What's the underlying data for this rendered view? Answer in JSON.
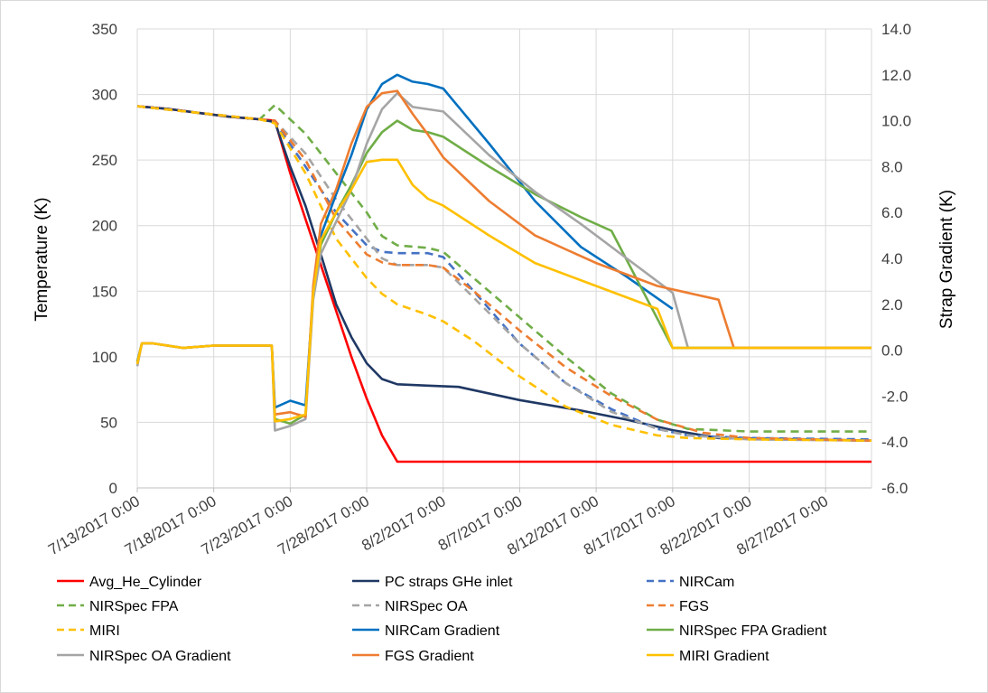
{
  "chart_data": {
    "type": "line",
    "title": "",
    "ylabel": "Temperature (K)",
    "y2label": "Strap Gradient (K)",
    "xlabel": "",
    "x_tick_labels": [
      "7/13/2017 0:00",
      "7/18/2017 0:00",
      "7/23/2017 0:00",
      "7/28/2017 0:00",
      "8/2/2017 0:00",
      "8/7/2017 0:00",
      "8/12/2017 0:00",
      "8/17/2017 0:00",
      "8/22/2017 0:00",
      "8/27/2017 0:00"
    ],
    "y_tick_labels": [
      "0",
      "50",
      "100",
      "150",
      "200",
      "250",
      "300",
      "350"
    ],
    "y2_tick_labels": [
      "-6.0",
      "-4.0",
      "-2.0",
      "0.0",
      "2.0",
      "4.0",
      "6.0",
      "8.0",
      "10.0",
      "12.0",
      "14.0"
    ],
    "xlim": [
      "2017-07-13",
      "2017-08-30"
    ],
    "ylim": [
      0,
      350
    ],
    "y2lim": [
      -6,
      14
    ],
    "grid": true,
    "legend_position": "bottom",
    "series": [
      {
        "name": "Avg_He_Cylinder",
        "axis": "left",
        "color": "#ff0000",
        "dash": "solid",
        "x": [
          "2017-07-13",
          "2017-07-15",
          "2017-07-17",
          "2017-07-19",
          "2017-07-21",
          "2017-07-22",
          "2017-07-23",
          "2017-07-24",
          "2017-07-25",
          "2017-07-26",
          "2017-07-27",
          "2017-07-28",
          "2017-07-29",
          "2017-07-30",
          "2017-07-31",
          "2017-08-05",
          "2017-08-15",
          "2017-08-25",
          "2017-08-30"
        ],
        "y": [
          291,
          289,
          286,
          283,
          281,
          280,
          240,
          205,
          170,
          135,
          100,
          68,
          40,
          20,
          20,
          20,
          20,
          20,
          20
        ]
      },
      {
        "name": "PC straps GHe inlet",
        "axis": "left",
        "color": "#1f3864",
        "dash": "solid",
        "x": [
          "2017-07-13",
          "2017-07-15",
          "2017-07-17",
          "2017-07-19",
          "2017-07-21",
          "2017-07-22",
          "2017-07-23",
          "2017-07-24",
          "2017-07-25",
          "2017-07-26",
          "2017-07-27",
          "2017-07-28",
          "2017-07-29",
          "2017-07-30",
          "2017-08-01",
          "2017-08-03",
          "2017-08-07",
          "2017-08-11",
          "2017-08-14",
          "2017-08-17",
          "2017-08-20",
          "2017-08-25",
          "2017-08-30"
        ],
        "y": [
          291,
          289,
          286,
          283,
          281,
          279,
          245,
          215,
          178,
          140,
          115,
          95,
          83,
          79,
          78,
          77,
          67,
          59,
          52,
          44,
          38,
          37,
          36
        ]
      },
      {
        "name": "NIRCam",
        "axis": "left",
        "color": "#4472c4",
        "dash": "dash",
        "x": [
          "2017-07-13",
          "2017-07-17",
          "2017-07-21",
          "2017-07-22",
          "2017-07-24",
          "2017-07-26",
          "2017-07-28",
          "2017-07-29",
          "2017-07-30",
          "2017-08-01",
          "2017-08-02",
          "2017-08-04",
          "2017-08-07",
          "2017-08-10",
          "2017-08-13",
          "2017-08-16",
          "2017-08-18",
          "2017-08-22",
          "2017-08-30"
        ],
        "y": [
          291,
          286,
          281,
          279,
          245,
          210,
          185,
          180,
          179,
          179,
          176,
          150,
          110,
          80,
          60,
          45,
          40,
          38,
          37
        ]
      },
      {
        "name": "NIRSpec FPA",
        "axis": "left",
        "color": "#70ad47",
        "dash": "dash",
        "x": [
          "2017-07-13",
          "2017-07-17",
          "2017-07-21",
          "2017-07-22",
          "2017-07-24",
          "2017-07-26",
          "2017-07-28",
          "2017-07-29",
          "2017-07-30",
          "2017-08-01",
          "2017-08-02",
          "2017-08-04",
          "2017-08-07",
          "2017-08-10",
          "2017-08-13",
          "2017-08-16",
          "2017-08-18",
          "2017-08-22",
          "2017-08-30"
        ],
        "y": [
          291,
          286,
          281,
          292,
          270,
          240,
          210,
          192,
          185,
          183,
          180,
          160,
          130,
          100,
          72,
          52,
          45,
          43,
          43
        ]
      },
      {
        "name": "NIRSpec OA",
        "axis": "left",
        "color": "#a5a5a5",
        "dash": "dash",
        "x": [
          "2017-07-13",
          "2017-07-17",
          "2017-07-21",
          "2017-07-22",
          "2017-07-24",
          "2017-07-26",
          "2017-07-28",
          "2017-07-29",
          "2017-07-30",
          "2017-08-01",
          "2017-08-02",
          "2017-08-04",
          "2017-08-07",
          "2017-08-10",
          "2017-08-13",
          "2017-08-16",
          "2017-08-18",
          "2017-08-22",
          "2017-08-30"
        ],
        "y": [
          291,
          286,
          281,
          280,
          255,
          220,
          190,
          175,
          170,
          170,
          168,
          145,
          110,
          80,
          58,
          45,
          40,
          37,
          36
        ]
      },
      {
        "name": "FGS",
        "axis": "left",
        "color": "#ed7d31",
        "dash": "dash",
        "x": [
          "2017-07-13",
          "2017-07-17",
          "2017-07-21",
          "2017-07-22",
          "2017-07-24",
          "2017-07-26",
          "2017-07-28",
          "2017-07-29",
          "2017-07-30",
          "2017-08-01",
          "2017-08-02",
          "2017-08-04",
          "2017-08-07",
          "2017-08-10",
          "2017-08-13",
          "2017-08-16",
          "2017-08-19",
          "2017-08-22",
          "2017-08-30"
        ],
        "y": [
          291,
          286,
          281,
          280,
          250,
          205,
          178,
          172,
          170,
          170,
          168,
          150,
          120,
          92,
          70,
          52,
          42,
          38,
          36
        ]
      },
      {
        "name": "MIRI",
        "axis": "left",
        "color": "#ffc000",
        "dash": "dash",
        "x": [
          "2017-07-13",
          "2017-07-17",
          "2017-07-21",
          "2017-07-22",
          "2017-07-24",
          "2017-07-26",
          "2017-07-28",
          "2017-07-29",
          "2017-07-30",
          "2017-08-01",
          "2017-08-02",
          "2017-08-04",
          "2017-08-07",
          "2017-08-10",
          "2017-08-13",
          "2017-08-16",
          "2017-08-18",
          "2017-08-22",
          "2017-08-30"
        ],
        "y": [
          291,
          286,
          281,
          278,
          240,
          190,
          160,
          148,
          140,
          132,
          127,
          112,
          85,
          62,
          48,
          40,
          38,
          37,
          36
        ]
      },
      {
        "name": "NIRCam Gradient",
        "axis": "right",
        "color": "#0070c0",
        "dash": "solid",
        "x": [
          "2017-07-13",
          "2017-07-13.3",
          "2017-07-14",
          "2017-07-16",
          "2017-07-18",
          "2017-07-20",
          "2017-07-21.8",
          "2017-07-22",
          "2017-07-23",
          "2017-07-24",
          "2017-07-24.5",
          "2017-07-25",
          "2017-07-26",
          "2017-07-27",
          "2017-07-28",
          "2017-07-29",
          "2017-07-30",
          "2017-07-31",
          "2017-08-01",
          "2017-08-02",
          "2017-08-05",
          "2017-08-08",
          "2017-08-11",
          "2017-08-14",
          "2017-08-17"
        ],
        "y": [
          -0.5,
          0.3,
          0.3,
          0.1,
          0.2,
          0.2,
          0.2,
          -2.5,
          -2.2,
          -2.4,
          2.5,
          5.0,
          6.8,
          8.5,
          10.5,
          11.6,
          12.0,
          11.7,
          11.6,
          11.4,
          9.0,
          6.5,
          4.5,
          3.2,
          1.8
        ]
      },
      {
        "name": "NIRSpec FPA Gradient",
        "axis": "right",
        "color": "#70ad47",
        "dash": "solid",
        "x": [
          "2017-07-13",
          "2017-07-13.3",
          "2017-07-14",
          "2017-07-16",
          "2017-07-18",
          "2017-07-20",
          "2017-07-21.8",
          "2017-07-22",
          "2017-07-23",
          "2017-07-24",
          "2017-07-24.5",
          "2017-07-25",
          "2017-07-26",
          "2017-07-27",
          "2017-07-28",
          "2017-07-29",
          "2017-07-30",
          "2017-07-31",
          "2017-08-01",
          "2017-08-02",
          "2017-08-05",
          "2017-08-08",
          "2017-08-11",
          "2017-08-13",
          "2017-08-17",
          "2017-08-25",
          "2017-08-30"
        ],
        "y": [
          -0.5,
          0.3,
          0.3,
          0.1,
          0.2,
          0.2,
          0.2,
          -3.0,
          -3.2,
          -2.8,
          2.4,
          4.6,
          6.0,
          7.2,
          8.6,
          9.5,
          10.0,
          9.6,
          9.5,
          9.3,
          8.0,
          6.8,
          5.8,
          5.2,
          0.1,
          0.1,
          0.1
        ]
      },
      {
        "name": "NIRSpec OA Gradient",
        "axis": "right",
        "color": "#a5a5a5",
        "dash": "solid",
        "x": [
          "2017-07-13",
          "2017-07-13.3",
          "2017-07-14",
          "2017-07-16",
          "2017-07-18",
          "2017-07-20",
          "2017-07-21.8",
          "2017-07-22",
          "2017-07-23",
          "2017-07-24",
          "2017-07-24.5",
          "2017-07-25",
          "2017-07-26",
          "2017-07-27",
          "2017-07-28",
          "2017-07-29",
          "2017-07-30",
          "2017-07-31",
          "2017-08-01",
          "2017-08-02",
          "2017-08-05",
          "2017-08-08",
          "2017-08-11",
          "2017-08-14",
          "2017-08-17",
          "2017-08-18",
          "2017-08-25",
          "2017-08-30"
        ],
        "y": [
          -0.7,
          0.3,
          0.3,
          0.1,
          0.2,
          0.2,
          0.2,
          -3.5,
          -3.3,
          -3.0,
          2.2,
          4.2,
          5.6,
          7.0,
          9.0,
          10.5,
          11.2,
          10.6,
          10.5,
          10.4,
          8.5,
          6.9,
          5.5,
          4.0,
          2.5,
          0.1,
          0.1,
          0.1
        ]
      },
      {
        "name": "FGS Gradient",
        "axis": "right",
        "color": "#ed7d31",
        "dash": "solid",
        "x": [
          "2017-07-13",
          "2017-07-13.3",
          "2017-07-14",
          "2017-07-16",
          "2017-07-18",
          "2017-07-20",
          "2017-07-21.8",
          "2017-07-22",
          "2017-07-23",
          "2017-07-24",
          "2017-07-24.5",
          "2017-07-25",
          "2017-07-26",
          "2017-07-27",
          "2017-07-28",
          "2017-07-29",
          "2017-07-30",
          "2017-07-31",
          "2017-08-01",
          "2017-08-02",
          "2017-08-05",
          "2017-08-08",
          "2017-08-12",
          "2017-08-16",
          "2017-08-20",
          "2017-08-21",
          "2017-08-25",
          "2017-08-30"
        ],
        "y": [
          -0.6,
          0.3,
          0.3,
          0.1,
          0.2,
          0.2,
          0.2,
          -2.8,
          -2.7,
          -2.9,
          2.8,
          5.5,
          7.0,
          9.0,
          10.6,
          11.2,
          11.3,
          10.3,
          9.4,
          8.4,
          6.5,
          5.0,
          3.8,
          2.8,
          2.2,
          0.1,
          0.1,
          0.1
        ]
      },
      {
        "name": "MIRI Gradient",
        "axis": "right",
        "color": "#ffc000",
        "dash": "solid",
        "x": [
          "2017-07-13",
          "2017-07-13.3",
          "2017-07-14",
          "2017-07-16",
          "2017-07-18",
          "2017-07-20",
          "2017-07-21.8",
          "2017-07-22",
          "2017-07-23",
          "2017-07-24",
          "2017-07-24.5",
          "2017-07-25",
          "2017-07-26",
          "2017-07-27",
          "2017-07-28",
          "2017-07-29",
          "2017-07-30",
          "2017-07-31",
          "2017-08-01",
          "2017-08-02",
          "2017-08-05",
          "2017-08-08",
          "2017-08-12",
          "2017-08-16",
          "2017-08-17",
          "2017-08-25",
          "2017-08-30"
        ],
        "y": [
          -0.6,
          0.3,
          0.3,
          0.1,
          0.2,
          0.2,
          0.2,
          -3.1,
          -3.0,
          -2.8,
          2.5,
          4.8,
          6.0,
          7.0,
          8.2,
          8.3,
          8.3,
          7.2,
          6.6,
          6.3,
          5.0,
          3.8,
          2.8,
          1.8,
          0.1,
          0.1,
          0.1
        ]
      }
    ]
  }
}
